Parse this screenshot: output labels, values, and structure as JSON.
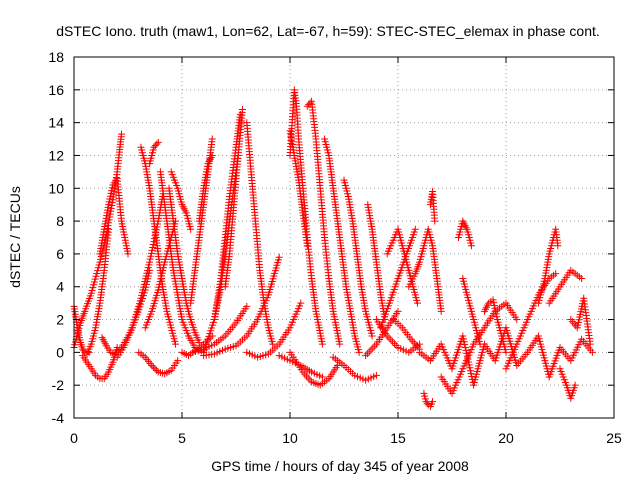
{
  "chart_data": {
    "type": "scatter",
    "title": "dSTEC Iono. truth (maw1, Lon=62, Lat=-67, h=59): STEC-STEC_elemax in phase cont.",
    "xlabel": "GPS time / hours of day 345 of year 2008",
    "ylabel": "dSTEC  / TECUs",
    "xlim": [
      0,
      25
    ],
    "ylim": [
      -4,
      18
    ],
    "xticks": [
      0,
      5,
      10,
      15,
      20,
      25
    ],
    "yticks": [
      -4,
      -2,
      0,
      2,
      4,
      6,
      8,
      10,
      12,
      14,
      16,
      18
    ],
    "grid": true,
    "marker": "+",
    "color": "#ff0000",
    "series": [
      {
        "x": [
          0.0,
          0.1,
          0.2,
          0.3,
          0.4,
          0.5,
          0.6,
          0.7
        ],
        "y": [
          2.8,
          2.0,
          1.2,
          0.6,
          0.2,
          0.0,
          -0.1,
          0.0
        ]
      },
      {
        "x": [
          0.0,
          0.1,
          0.2,
          0.3,
          0.5,
          0.8,
          1.2,
          1.5,
          1.8,
          2.0,
          2.1,
          2.2
        ],
        "y": [
          0.3,
          0.8,
          1.3,
          1.8,
          2.5,
          3.6,
          5.5,
          7.2,
          9.3,
          11.0,
          12.2,
          13.3
        ]
      },
      {
        "x": [
          0.4,
          0.6,
          0.8,
          1.0,
          1.2,
          1.4,
          1.6,
          1.8,
          2.0
        ],
        "y": [
          -0.2,
          -0.6,
          -1.0,
          -1.4,
          -1.6,
          -1.6,
          -1.2,
          -0.6,
          0.3
        ]
      },
      {
        "x": [
          0.6,
          0.8,
          1.0,
          1.2,
          1.4,
          1.6
        ],
        "y": [
          -0.1,
          0.5,
          1.5,
          3.0,
          5.0,
          7.5
        ]
      },
      {
        "x": [
          1.2,
          1.4,
          1.6,
          1.8,
          2.0,
          2.2,
          2.5
        ],
        "y": [
          6.0,
          7.5,
          9.0,
          10.2,
          10.6,
          8.0,
          6.0
        ]
      },
      {
        "x": [
          1.3,
          1.5,
          1.7,
          1.9,
          2.2,
          2.6,
          3.0,
          3.3,
          3.5
        ],
        "y": [
          0.9,
          0.4,
          0.0,
          -0.1,
          0.3,
          1.2,
          2.6,
          3.8,
          5.0
        ]
      },
      {
        "x": [
          2.0,
          2.3,
          2.7,
          3.1,
          3.5,
          3.9,
          4.1
        ],
        "y": [
          -0.3,
          0.3,
          1.5,
          3.3,
          5.5,
          8.0,
          9.5
        ]
      },
      {
        "x": [
          3.1,
          3.3,
          3.5,
          3.7,
          3.9,
          4.1,
          4.3,
          4.5,
          4.7
        ],
        "y": [
          12.5,
          11.5,
          10.0,
          8.0,
          6.0,
          4.0,
          2.5,
          1.5,
          0.5
        ]
      },
      {
        "x": [
          3.5,
          3.7,
          3.9
        ],
        "y": [
          11.5,
          12.5,
          12.8
        ]
      },
      {
        "x": [
          3.0,
          3.3,
          3.6,
          3.9,
          4.2,
          4.5,
          4.8
        ],
        "y": [
          0.0,
          -0.3,
          -0.8,
          -1.2,
          -1.3,
          -1.1,
          -0.5
        ]
      },
      {
        "x": [
          3.3,
          3.6,
          3.9,
          4.2,
          4.5,
          4.7
        ],
        "y": [
          1.5,
          2.5,
          3.8,
          5.5,
          7.0,
          8.0
        ]
      },
      {
        "x": [
          4.0,
          4.2,
          4.4,
          4.6,
          4.8,
          5.0,
          5.3,
          5.6,
          6.0
        ],
        "y": [
          11.0,
          9.0,
          7.0,
          5.0,
          3.5,
          2.0,
          1.0,
          0.3,
          0.0
        ]
      },
      {
        "x": [
          4.4,
          4.6,
          4.8,
          5.0,
          5.2,
          5.4,
          5.6,
          5.8
        ],
        "y": [
          10.0,
          8.0,
          6.0,
          4.5,
          3.0,
          2.0,
          1.2,
          0.6
        ]
      },
      {
        "x": [
          4.5,
          4.8,
          5.0,
          5.2,
          5.4
        ],
        "y": [
          11.0,
          10.0,
          9.0,
          8.5,
          7.5
        ]
      },
      {
        "x": [
          5.0,
          5.3,
          5.6,
          6.0,
          6.4
        ],
        "y": [
          0.0,
          -0.2,
          0.1,
          0.5,
          1.0
        ]
      },
      {
        "x": [
          5.4,
          5.6,
          5.8,
          6.0,
          6.2,
          6.4
        ],
        "y": [
          3.0,
          5.0,
          7.0,
          9.0,
          11.0,
          13.0
        ]
      },
      {
        "x": [
          5.8,
          6.0,
          6.2,
          6.4
        ],
        "y": [
          8.0,
          10.0,
          11.5,
          12.0
        ]
      },
      {
        "x": [
          6.0,
          6.2,
          6.5,
          6.8,
          7.0,
          7.3,
          7.6
        ],
        "y": [
          0.0,
          0.8,
          2.0,
          4.0,
          6.0,
          9.0,
          12.0
        ]
      },
      {
        "x": [
          6.5,
          6.8,
          7.0,
          7.2,
          7.5,
          7.7
        ],
        "y": [
          2.0,
          4.5,
          7.0,
          9.5,
          12.5,
          14.5
        ]
      },
      {
        "x": [
          7.0,
          7.2,
          7.4,
          7.6,
          7.8
        ],
        "y": [
          4.0,
          6.0,
          9.0,
          12.0,
          14.8
        ]
      },
      {
        "x": [
          6.0,
          6.5,
          7.0,
          7.5,
          8.0,
          8.5,
          9.0,
          9.5
        ],
        "y": [
          -0.2,
          -0.1,
          0.2,
          0.4,
          1.0,
          2.0,
          3.5,
          5.8
        ]
      },
      {
        "x": [
          5.5,
          6.0,
          6.5,
          7.0,
          7.5,
          8.0
        ],
        "y": [
          0.0,
          0.2,
          0.5,
          1.0,
          1.8,
          2.8
        ]
      },
      {
        "x": [
          8.0,
          8.2,
          8.4,
          8.6,
          8.8,
          9.0,
          9.2
        ],
        "y": [
          14.0,
          11.0,
          8.0,
          5.0,
          3.0,
          1.5,
          0.5
        ]
      },
      {
        "x": [
          8.0,
          8.5,
          9.0,
          9.5,
          10.0,
          10.5
        ],
        "y": [
          0.0,
          -0.3,
          -0.1,
          0.5,
          1.5,
          3.0
        ]
      },
      {
        "x": [
          10.0,
          10.1,
          10.2,
          10.3,
          10.4,
          10.6,
          10.8,
          11.0,
          11.2,
          11.5
        ],
        "y": [
          12.0,
          14.0,
          16.0,
          15.0,
          13.0,
          10.0,
          7.0,
          4.5,
          2.5,
          0.5
        ]
      },
      {
        "x": [
          10.0,
          10.2,
          10.4,
          10.6,
          10.8
        ],
        "y": [
          13.5,
          12.0,
          10.5,
          8.5,
          6.5
        ]
      },
      {
        "x": [
          10.8,
          11.0,
          11.2,
          11.4,
          11.6,
          11.8,
          12.0,
          12.3
        ],
        "y": [
          15.0,
          15.3,
          13.0,
          10.0,
          7.0,
          4.5,
          2.5,
          0.5
        ]
      },
      {
        "x": [
          10.0,
          10.3,
          10.6,
          11.0,
          11.4,
          11.8,
          12.2
        ],
        "y": [
          0.0,
          -0.6,
          -1.2,
          -1.8,
          -2.0,
          -1.6,
          -0.8
        ]
      },
      {
        "x": [
          9.5,
          10.0,
          10.5,
          11.0,
          11.5
        ],
        "y": [
          -0.2,
          -0.5,
          -0.8,
          -1.2,
          -1.5
        ]
      },
      {
        "x": [
          11.6,
          11.8,
          12.0,
          12.2,
          12.4,
          12.6,
          12.8,
          13.0,
          13.2
        ],
        "y": [
          13.0,
          12.0,
          10.0,
          8.0,
          6.0,
          4.0,
          2.5,
          1.0,
          0.0
        ]
      },
      {
        "x": [
          12.5,
          12.7,
          12.9,
          13.1,
          13.3,
          13.5,
          13.8
        ],
        "y": [
          10.5,
          9.5,
          8.0,
          6.0,
          4.0,
          2.5,
          1.0
        ]
      },
      {
        "x": [
          12.0,
          12.5,
          13.0,
          13.5,
          14.0
        ],
        "y": [
          -0.3,
          -0.8,
          -1.4,
          -1.7,
          -1.4
        ]
      },
      {
        "x": [
          13.6,
          13.8,
          14.0,
          14.2,
          14.4
        ],
        "y": [
          9.0,
          7.5,
          5.5,
          3.5,
          2.0
        ]
      },
      {
        "x": [
          13.5,
          14.0,
          14.5,
          15.0
        ],
        "y": [
          -0.2,
          0.5,
          1.5,
          2.5
        ]
      },
      {
        "x": [
          14.0,
          14.5,
          15.0,
          15.5,
          16.0
        ],
        "y": [
          2.0,
          1.0,
          0.3,
          0.0,
          0.5
        ]
      },
      {
        "x": [
          14.2,
          14.6,
          15.0,
          15.4,
          15.8
        ],
        "y": [
          1.5,
          3.0,
          4.5,
          6.0,
          7.5
        ]
      },
      {
        "x": [
          14.5,
          15.0,
          15.3,
          15.6,
          15.9
        ],
        "y": [
          6.0,
          7.5,
          6.0,
          4.5,
          3.0
        ]
      },
      {
        "x": [
          14.8,
          15.2,
          15.6,
          16.0
        ],
        "y": [
          2.0,
          1.5,
          0.8,
          0.2
        ]
      },
      {
        "x": [
          15.5,
          15.8,
          16.0,
          16.2,
          16.4,
          16.6,
          16.8,
          17.0
        ],
        "y": [
          4.0,
          4.8,
          5.5,
          6.5,
          7.5,
          6.5,
          4.5,
          2.5
        ]
      },
      {
        "x": [
          16.5,
          16.6,
          16.7
        ],
        "y": [
          9.0,
          9.8,
          8.0
        ]
      },
      {
        "x": [
          16.2,
          16.3,
          16.4,
          16.5,
          16.6
        ],
        "y": [
          -2.5,
          -3.0,
          -3.2,
          -3.3,
          -3.0
        ]
      },
      {
        "x": [
          16.0,
          16.5,
          17.0,
          17.5,
          18.0,
          18.5,
          19.0,
          19.5,
          20.0,
          20.5,
          21.0,
          21.5,
          22.0,
          22.5,
          23.0,
          23.5,
          24.0
        ],
        "y": [
          0.0,
          -0.5,
          0.5,
          -1.0,
          1.0,
          -2.0,
          0.5,
          -0.5,
          1.5,
          -0.8,
          0.0,
          1.0,
          -1.5,
          0.3,
          -0.5,
          0.8,
          0.0
        ]
      },
      {
        "x": [
          17.0,
          17.5,
          18.0,
          18.5,
          19.0,
          19.5,
          20.0,
          20.5
        ],
        "y": [
          -1.5,
          -2.5,
          -1.0,
          0.5,
          1.5,
          2.5,
          3.0,
          2.0
        ]
      },
      {
        "x": [
          17.8,
          18.0,
          18.2,
          18.4
        ],
        "y": [
          7.0,
          8.0,
          7.5,
          6.5
        ]
      },
      {
        "x": [
          18.0,
          18.2,
          18.4,
          18.6,
          18.8
        ],
        "y": [
          4.5,
          3.5,
          2.5,
          1.5,
          0.5
        ]
      },
      {
        "x": [
          19.0,
          19.2,
          19.4,
          19.6,
          19.8,
          20.0
        ],
        "y": [
          2.5,
          3.0,
          3.2,
          2.0,
          1.0,
          0.0
        ]
      },
      {
        "x": [
          20.0,
          20.5,
          21.0,
          21.5,
          22.0,
          22.3
        ],
        "y": [
          -1.0,
          0.5,
          2.0,
          3.5,
          4.5,
          4.8
        ]
      },
      {
        "x": [
          21.5,
          21.8,
          22.0,
          22.2,
          22.3,
          22.4
        ],
        "y": [
          3.0,
          4.5,
          6.0,
          7.0,
          7.5,
          6.5
        ]
      },
      {
        "x": [
          22.5,
          22.8,
          23.0,
          23.2
        ],
        "y": [
          -1.0,
          -2.0,
          -2.8,
          -2.0
        ]
      },
      {
        "x": [
          22.0,
          22.5,
          23.0,
          23.5
        ],
        "y": [
          3.0,
          4.0,
          5.0,
          4.5
        ]
      },
      {
        "x": [
          23.0,
          23.3,
          23.6,
          23.9
        ],
        "y": [
          2.0,
          1.5,
          3.3,
          0.5
        ]
      }
    ]
  }
}
